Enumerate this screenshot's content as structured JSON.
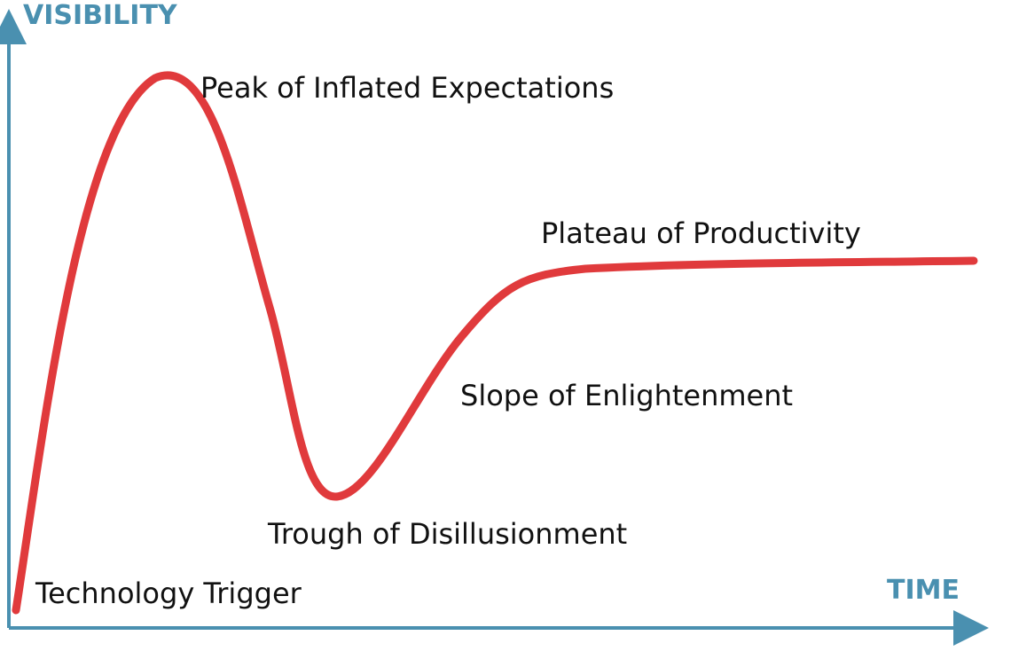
{
  "colors": {
    "axis": "#4a90b0",
    "curve": "#e03a3c",
    "label": "#111111"
  },
  "axes": {
    "y_label": "VISIBILITY",
    "x_label": "TIME"
  },
  "phases": [
    {
      "key": "trigger",
      "label": "Technology Trigger"
    },
    {
      "key": "peak",
      "label": "Peak of Inflated Expectations"
    },
    {
      "key": "trough",
      "label": "Trough of Disillusionment"
    },
    {
      "key": "slope",
      "label": "Slope of Enlightenment"
    },
    {
      "key": "plateau",
      "label": "Plateau of Productivity"
    }
  ]
}
